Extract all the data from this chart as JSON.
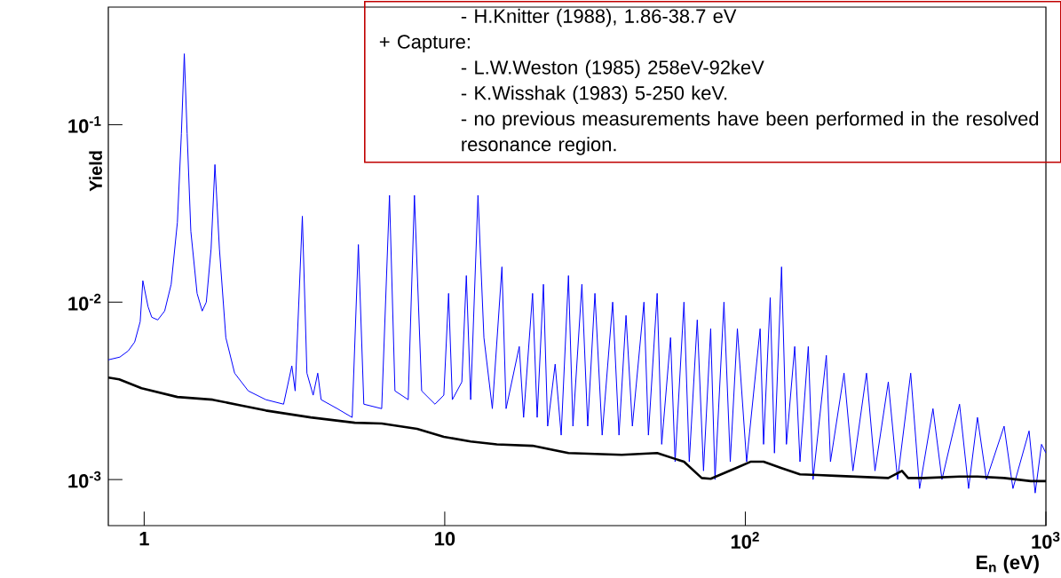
{
  "chart_data": {
    "type": "line",
    "xlabel": "E$_{n}$ (eV)",
    "ylabel": "Yield",
    "log": "xy",
    "marker": "none",
    "line_style": "solid",
    "xlim": [
      0.76,
      1000
    ],
    "ylim": [
      0.00055,
      0.46
    ],
    "xticks": [
      1,
      10,
      {
        "value": 100,
        "label": "10$^{2}$"
      },
      {
        "value": 1000,
        "label": "10$^{3}$"
      }
    ],
    "yticks": [
      {
        "value": 0.001,
        "label": "10$^{-3}$"
      },
      {
        "value": 0.01,
        "label": "10$^{-2}$"
      },
      {
        "value": 0.1,
        "label": "10$^{-1}$"
      }
    ],
    "annotations": [
      "- H.Knitter (1988), 1.86-38.7 eV",
      "+ Capture:",
      "- L.W.Weston (1985) 258eV-92keV",
      "- K.Wisshak (1983) 5-250 keV.",
      "- no previous measurements have been performed in the resolved resonance region."
    ],
    "series": [
      {
        "color": "#0000ff",
        "x": [
          0.76,
          0.83,
          0.885,
          0.93,
          0.97,
          0.99,
          1.03,
          1.06,
          1.11,
          1.17,
          1.23,
          1.29,
          1.33,
          1.36,
          1.39,
          1.43,
          1.5,
          1.56,
          1.61,
          1.67,
          1.72,
          1.78,
          1.87,
          2.0,
          2.22,
          2.54,
          2.91,
          3.1,
          3.18,
          3.36,
          3.48,
          3.65,
          3.78,
          3.88,
          4.39,
          4.92,
          5.16,
          5.38,
          6.17,
          6.55,
          6.83,
          7.56,
          7.93,
          8.38,
          9.28,
          9.93,
          10.3,
          10.6,
          11.4,
          11.8,
          12.2,
          12.9,
          13.5,
          14.4,
          15.5,
          16.0,
          17.7,
          18.3,
          19.6,
          20.3,
          21.3,
          22.0,
          23.3,
          24.4,
          25.8,
          26.7,
          28.6,
          29.9,
          31.6,
          33.4,
          36.2,
          38.0,
          40.1,
          42.1,
          46.0,
          47.6,
          50.9,
          52.7,
          56.4,
          58.4,
          62.5,
          65.1,
          69.2,
          72.6,
          76.7,
          79.3,
          84.9,
          89.1,
          94.1,
          101,
          112,
          115,
          121,
          125,
          132,
          137,
          146,
          152,
          162,
          168,
          186,
          192,
          213,
          228,
          253,
          270,
          299,
          321,
          355,
          380,
          421,
          451,
          516,
          553,
          592,
          634,
          726,
          777,
          879,
          921,
          967,
          1000
        ],
        "values": [
          0.00473,
          0.0049,
          0.00531,
          0.00596,
          0.00776,
          0.0132,
          0.00944,
          0.00822,
          0.00794,
          0.00891,
          0.0126,
          0.0282,
          0.0891,
          0.251,
          0.0891,
          0.0251,
          0.0112,
          0.00891,
          0.01,
          0.02,
          0.0596,
          0.02,
          0.00631,
          0.00398,
          0.00316,
          0.00282,
          0.00266,
          0.00437,
          0.00316,
          0.0305,
          0.00398,
          0.00299,
          0.00398,
          0.00282,
          0.00251,
          0.00224,
          0.0211,
          0.00266,
          0.00251,
          0.04,
          0.00316,
          0.00282,
          0.04,
          0.00316,
          0.00266,
          0.00299,
          0.0112,
          0.00282,
          0.00355,
          0.0141,
          0.00282,
          0.04,
          0.00631,
          0.00251,
          0.0158,
          0.00251,
          0.00562,
          0.00224,
          0.0112,
          0.00224,
          0.0126,
          0.002,
          0.00447,
          0.00178,
          0.0141,
          0.002,
          0.0126,
          0.002,
          0.0112,
          0.00178,
          0.01,
          0.00178,
          0.00841,
          0.002,
          0.01,
          0.00178,
          0.0112,
          0.00158,
          0.00631,
          0.00126,
          0.01,
          0.00126,
          0.00794,
          0.00112,
          0.00708,
          0.001,
          0.01,
          0.00126,
          0.00708,
          0.00126,
          0.00708,
          0.00158,
          0.0106,
          0.00141,
          0.0158,
          0.00158,
          0.00562,
          0.00126,
          0.00562,
          0.001,
          0.00501,
          0.00126,
          0.00398,
          0.00112,
          0.00398,
          0.00112,
          0.00355,
          0.001,
          0.00398,
          0.00089,
          0.00251,
          0.001,
          0.00266,
          0.00089,
          0.00224,
          0.001,
          0.002,
          0.00089,
          0.00188,
          0.00084,
          0.00158,
          0.00141
        ]
      },
      {
        "color": "#000000",
        "x": [
          0.76,
          0.826,
          0.98,
          1.29,
          1.69,
          2.07,
          2.54,
          3.58,
          5.02,
          6.17,
          8.09,
          9.93,
          12.2,
          14.9,
          19.6,
          25.8,
          38.8,
          50.9,
          62.5,
          71.6,
          76.7,
          82.1,
          94.1,
          104,
          115,
          132,
          152,
          174,
          199,
          299,
          332,
          348,
          393,
          516,
          592,
          726,
          891,
          1000
        ],
        "values": [
          0.00376,
          0.00367,
          0.00327,
          0.00292,
          0.00282,
          0.00263,
          0.00245,
          0.00224,
          0.00209,
          0.00207,
          0.00193,
          0.00174,
          0.00164,
          0.00158,
          0.00155,
          0.00141,
          0.00138,
          0.00141,
          0.00126,
          0.00102,
          0.00101,
          0.00106,
          0.00117,
          0.00126,
          0.00126,
          0.00116,
          0.00107,
          0.00106,
          0.00105,
          0.00102,
          0.00112,
          0.00102,
          0.00102,
          0.00104,
          0.00104,
          0.00102,
          0.00098,
          0.00098
        ]
      }
    ]
  }
}
